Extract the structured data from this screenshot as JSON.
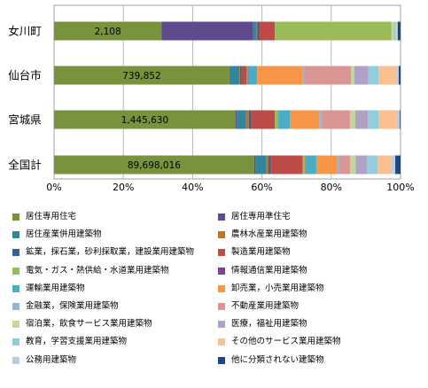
{
  "chart_data": {
    "type": "bar",
    "orientation": "horizontal",
    "stacked": "percent",
    "categories": [
      "女川町",
      "仙台市",
      "宮城県",
      "全国計"
    ],
    "totals": [
      "2,108",
      "739,852",
      "1,445,630",
      "89,698,016"
    ],
    "x_ticks": [
      "0%",
      "20%",
      "40%",
      "60%",
      "80%",
      "100%"
    ],
    "xlim": [
      0,
      100
    ],
    "grid": true,
    "legend_position": "bottom",
    "series": [
      {
        "name": "居住専用住宅",
        "color": "#77933c",
        "values": [
          31.0,
          50.5,
          51.0,
          57.0
        ]
      },
      {
        "name": "居住専用準住宅",
        "color": "#5f4a8b",
        "values": [
          26.5,
          0.2,
          0.3,
          0.4
        ]
      },
      {
        "name": "居住産業併用建築物",
        "color": "#31859c",
        "values": [
          0.8,
          2.7,
          2.6,
          3.1
        ]
      },
      {
        "name": "農林水産業用建築物",
        "color": "#c0712b",
        "values": [
          0.4,
          0.2,
          0.8,
          0.6
        ]
      },
      {
        "name": "鉱業，採石業，砂利採取業，建設業用建築物",
        "color": "#376092",
        "values": [
          0.5,
          0.4,
          0.7,
          0.7
        ]
      },
      {
        "name": "製造業用建築物",
        "color": "#be4b48",
        "values": [
          4.5,
          1.5,
          6.6,
          9.0
        ]
      },
      {
        "name": "電気・ガス・熱供給・水道業用建築物",
        "color": "#9bbb59",
        "values": [
          33.5,
          0.3,
          0.9,
          0.8
        ]
      },
      {
        "name": "情報通信業用建築物",
        "color": "#7e3f98",
        "values": [
          0.0,
          0.2,
          0.1,
          0.1
        ]
      },
      {
        "name": "運輸業用建築物",
        "color": "#4bacc6",
        "values": [
          0.0,
          2.5,
          3.2,
          3.0
        ]
      },
      {
        "name": "卸売業，小売業用建築物",
        "color": "#f79646",
        "values": [
          0.0,
          13.0,
          8.3,
          6.0
        ]
      },
      {
        "name": "金融業，保険業用建築物",
        "color": "#95b3d7",
        "values": [
          0.3,
          0.5,
          0.6,
          0.6
        ]
      },
      {
        "name": "不動産業用建築物",
        "color": "#d99694",
        "values": [
          0.0,
          13.5,
          8.0,
          3.0
        ]
      },
      {
        "name": "宿泊業，飲食サービス業用建築物",
        "color": "#c3d69b",
        "values": [
          0.8,
          1.0,
          1.5,
          1.6
        ]
      },
      {
        "name": "医療，福祉用建築物",
        "color": "#b2a1c7",
        "values": [
          0.2,
          4.0,
          3.5,
          3.3
        ]
      },
      {
        "name": "教育，学習支援業用建築物",
        "color": "#93cddd",
        "values": [
          0.2,
          3.0,
          3.0,
          3.0
        ]
      },
      {
        "name": "その他のサービス業用建築物",
        "color": "#fac090",
        "values": [
          0.2,
          5.0,
          5.0,
          4.0
        ]
      },
      {
        "name": "公務用建築物",
        "color": "#b9cde5",
        "values": [
          0.3,
          0.8,
          1.0,
          1.0
        ]
      },
      {
        "name": "他に分類されない建築物",
        "color": "#1f497d",
        "values": [
          0.8,
          0.5,
          0.2,
          1.5
        ]
      }
    ]
  }
}
